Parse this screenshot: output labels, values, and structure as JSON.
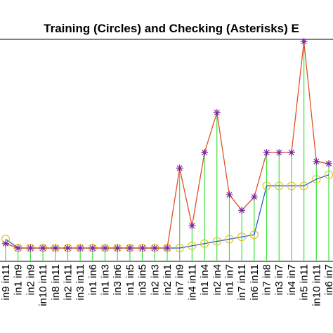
{
  "chart_data": {
    "type": "line",
    "title": "Training (Circles) and Checking (Asterisks) E",
    "categories": [
      "in9 in11",
      "in1 in9",
      "in2 in9",
      "in10 in11",
      "in8 in11",
      "in2 in11",
      "in3 in11",
      "in1 in6",
      "in1 in3",
      "in3 in6",
      "in1 in5",
      "in3 in5",
      "in2 in3",
      "in2 in1",
      "in7 in9",
      "in4 in11",
      "in1 in4",
      "in2 in4",
      "in1 in7",
      "in7 in11",
      "in6 in11",
      "in7 in8",
      "in3 in7",
      "in4 in7",
      "in5 in11",
      "in10 in11",
      "in6 in7"
    ],
    "series": [
      {
        "name": "Training",
        "color": "#1f5fd0",
        "marker_color": "#e8c020",
        "values": [
          0.1,
          0.06,
          0.06,
          0.06,
          0.06,
          0.06,
          0.06,
          0.06,
          0.06,
          0.06,
          0.06,
          0.06,
          0.06,
          0.06,
          0.06,
          0.07,
          0.08,
          0.09,
          0.1,
          0.11,
          0.12,
          0.34,
          0.34,
          0.34,
          0.34,
          0.37,
          0.39
        ]
      },
      {
        "name": "Checking",
        "color": "#e0502a",
        "marker_color": "#7a1fa0",
        "values": [
          0.08,
          0.06,
          0.06,
          0.06,
          0.06,
          0.06,
          0.06,
          0.06,
          0.06,
          0.06,
          0.06,
          0.06,
          0.06,
          0.06,
          0.42,
          0.16,
          0.49,
          0.67,
          0.3,
          0.23,
          0.29,
          0.49,
          0.49,
          0.49,
          0.99,
          0.45,
          0.44
        ]
      }
    ],
    "stem_color": "#3ee03e",
    "ylim": [
      0,
      1
    ]
  }
}
